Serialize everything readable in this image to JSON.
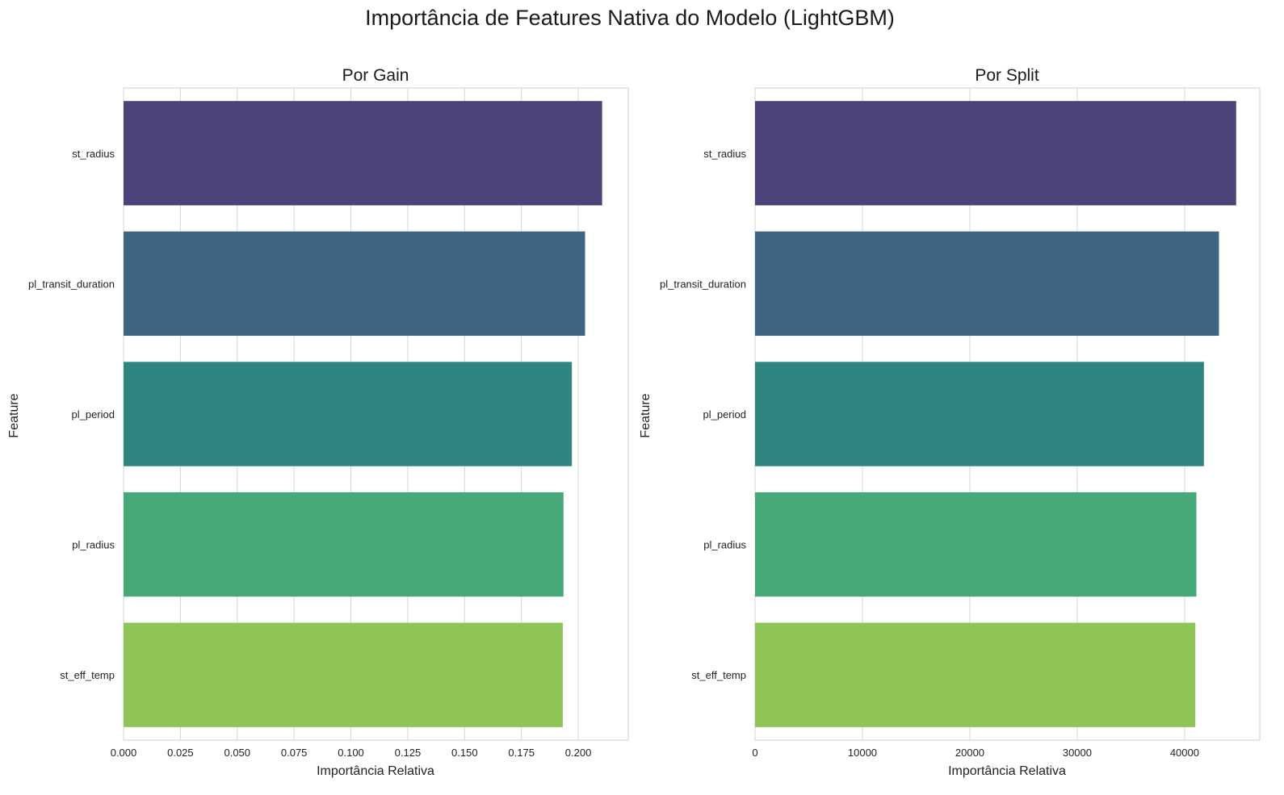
{
  "title": "Importância de Features Nativa do Modelo (LightGBM)",
  "chart_data": [
    {
      "type": "bar",
      "orientation": "horizontal",
      "title": "Por Gain",
      "xlabel": "Importância Relativa",
      "ylabel": "Feature",
      "categories": [
        "st_radius",
        "pl_transit_duration",
        "pl_period",
        "pl_radius",
        "st_eff_temp"
      ],
      "values": [
        0.2105,
        0.203,
        0.1972,
        0.1935,
        0.1932
      ],
      "xlim": [
        0,
        0.222
      ],
      "xticks": [
        "0.000",
        "0.025",
        "0.050",
        "0.075",
        "0.100",
        "0.125",
        "0.150",
        "0.175",
        "0.200"
      ],
      "grid": true
    },
    {
      "type": "bar",
      "orientation": "horizontal",
      "title": "Por Split",
      "xlabel": "Importância Relativa",
      "ylabel": "Feature",
      "categories": [
        "st_radius",
        "pl_transit_duration",
        "pl_period",
        "pl_radius",
        "st_eff_temp"
      ],
      "values": [
        44800,
        43200,
        41800,
        41100,
        41000
      ],
      "xlim": [
        0,
        47000
      ],
      "xticks": [
        "0",
        "10000",
        "20000",
        "30000",
        "40000"
      ],
      "grid": true
    }
  ],
  "colors": {
    "bars": [
      "#4b437a",
      "#3e6683",
      "#2f8580",
      "#47a878",
      "#8fc456"
    ],
    "grid": "#d6d6d6",
    "frame": "#cccccc"
  }
}
